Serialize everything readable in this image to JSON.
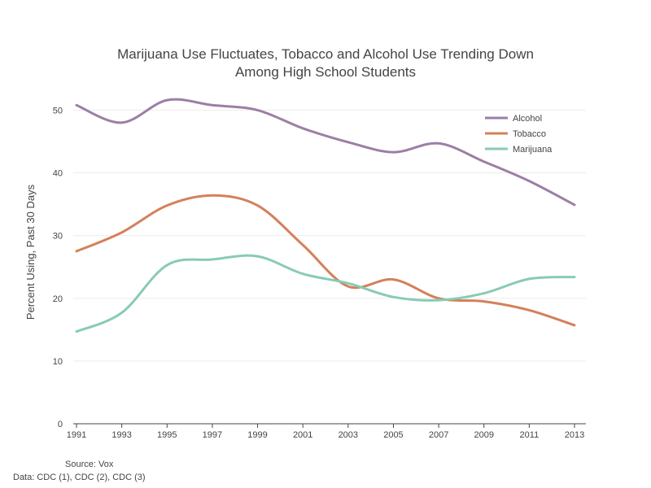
{
  "chart_data": {
    "type": "line",
    "title_line1": "Marijuana Use Fluctuates, Tobacco and Alcohol Use Trending Down",
    "title_line2": "Among High School Students",
    "ylabel": "Percent Using, Past 30 Days",
    "xlabel": "",
    "ylim": [
      0,
      52
    ],
    "yticks": [
      "0",
      "10",
      "20",
      "30",
      "40",
      "50"
    ],
    "x": [
      "1991",
      "1993",
      "1995",
      "1997",
      "1999",
      "2001",
      "2003",
      "2005",
      "2007",
      "2009",
      "2011",
      "2013"
    ],
    "grid": true,
    "legend_position": "top-right",
    "series": [
      {
        "name": "Alcohol",
        "color": "#9b7fa6",
        "values": [
          50.8,
          48.0,
          51.6,
          50.8,
          50.0,
          47.1,
          44.9,
          43.3,
          44.7,
          41.8,
          38.7,
          34.9
        ]
      },
      {
        "name": "Tobacco",
        "color": "#d4805a",
        "values": [
          27.5,
          30.5,
          34.8,
          36.4,
          34.8,
          28.5,
          21.9,
          23.0,
          20.0,
          19.5,
          18.1,
          15.7
        ]
      },
      {
        "name": "Marijuana",
        "color": "#88cbb5",
        "values": [
          14.7,
          17.7,
          25.3,
          26.2,
          26.7,
          23.9,
          22.4,
          20.2,
          19.7,
          20.8,
          23.1,
          23.4
        ]
      }
    ]
  },
  "footer": {
    "source": "Source: Vox",
    "data_note": "Data: CDC (1), CDC (2), CDC (3)"
  }
}
